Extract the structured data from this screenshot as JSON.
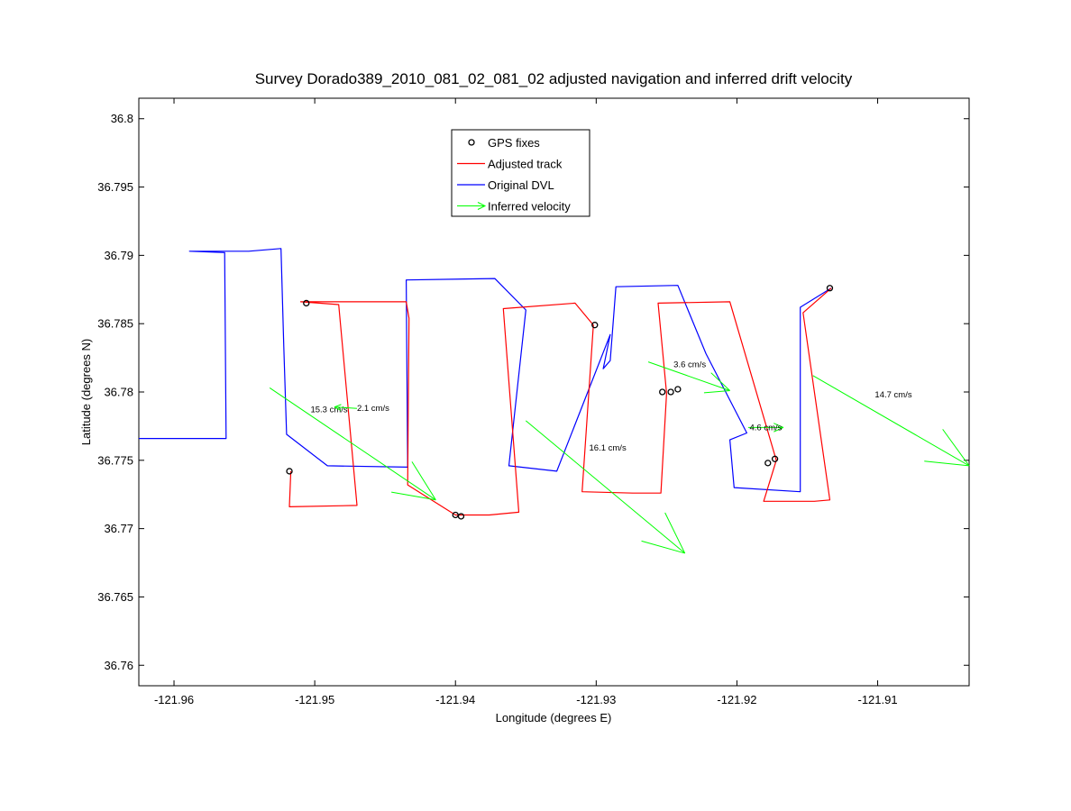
{
  "chart_data": {
    "type": "line",
    "title": "Survey Dorado389_2010_081_02_081_02 adjusted navigation and inferred drift velocity",
    "xlabel": "Longitude (degrees E)",
    "ylabel": "Latitude (degrees N)",
    "xlim": [
      -121.9625,
      -121.9035
    ],
    "ylim": [
      36.7585,
      36.8015
    ],
    "xticks": [
      -121.96,
      -121.95,
      -121.94,
      -121.93,
      -121.92,
      -121.91
    ],
    "xtick_labels": [
      "-121.96",
      "-121.95",
      "-121.94",
      "-121.93",
      "-121.92",
      "-121.91"
    ],
    "yticks": [
      36.76,
      36.765,
      36.77,
      36.775,
      36.78,
      36.785,
      36.79,
      36.795,
      36.8
    ],
    "ytick_labels": [
      "36.76",
      "36.765",
      "36.77",
      "36.775",
      "36.78",
      "36.785",
      "36.79",
      "36.795",
      "36.8"
    ],
    "grid": false,
    "legend_position": "top-center",
    "colors": {
      "gps": "#000000",
      "adjusted": "#ff0000",
      "original": "#0000ff",
      "velocity": "#00ff00"
    },
    "legend": [
      {
        "label": "GPS fixes",
        "key": "gps",
        "style": "marker"
      },
      {
        "label": "Adjusted track",
        "key": "adjusted",
        "style": "line"
      },
      {
        "label": "Original DVL",
        "key": "original",
        "style": "line"
      },
      {
        "label": "Inferred velocity",
        "key": "velocity",
        "style": "arrow"
      }
    ],
    "series": [
      {
        "name": "Original DVL",
        "key": "original",
        "points": [
          [
            -121.9625,
            36.7766
          ],
          [
            -121.9566,
            36.7766
          ],
          [
            -121.9563,
            36.7766
          ],
          [
            -121.9564,
            36.7902
          ],
          [
            -121.9589,
            36.7903
          ],
          [
            -121.9547,
            36.7903
          ],
          [
            -121.9524,
            36.7905
          ],
          [
            -121.9522,
            36.7833
          ],
          [
            -121.952,
            36.7769
          ],
          [
            -121.9491,
            36.7746
          ],
          [
            -121.9434,
            36.7745
          ],
          [
            -121.9435,
            36.7882
          ],
          [
            -121.9372,
            36.7883
          ],
          [
            -121.935,
            36.786
          ],
          [
            -121.9362,
            36.7746
          ],
          [
            -121.9328,
            36.7742
          ],
          [
            -121.929,
            36.7842
          ],
          [
            -121.9295,
            36.7817
          ],
          [
            -121.929,
            36.7823
          ],
          [
            -121.9286,
            36.7877
          ],
          [
            -121.9242,
            36.7878
          ],
          [
            -121.9222,
            36.7828
          ],
          [
            -121.9193,
            36.777
          ],
          [
            -121.9205,
            36.7765
          ],
          [
            -121.9202,
            36.773
          ],
          [
            -121.9155,
            36.7727
          ],
          [
            -121.9155,
            36.7862
          ],
          [
            -121.9133,
            36.7876
          ]
        ]
      },
      {
        "name": "Adjusted track",
        "key": "adjusted",
        "points": [
          [
            -121.9517,
            36.7742
          ],
          [
            -121.9518,
            36.7716
          ],
          [
            -121.947,
            36.7717
          ],
          [
            -121.9483,
            36.7864
          ],
          [
            -121.951,
            36.7866
          ],
          [
            -121.9486,
            36.7866
          ],
          [
            -121.9435,
            36.7866
          ],
          [
            -121.9433,
            36.7854
          ],
          [
            -121.9434,
            36.7732
          ],
          [
            -121.94,
            36.771
          ],
          [
            -121.9376,
            36.771
          ],
          [
            -121.9355,
            36.7712
          ],
          [
            -121.9366,
            36.7861
          ],
          [
            -121.9315,
            36.7865
          ],
          [
            -121.9302,
            36.7849
          ],
          [
            -121.931,
            36.7727
          ],
          [
            -121.9274,
            36.7726
          ],
          [
            -121.9254,
            36.7726
          ],
          [
            -121.925,
            36.7799
          ],
          [
            -121.9256,
            36.7865
          ],
          [
            -121.9205,
            36.7866
          ],
          [
            -121.9172,
            36.775
          ],
          [
            -121.9181,
            36.772
          ],
          [
            -121.9145,
            36.772
          ],
          [
            -121.9134,
            36.7721
          ],
          [
            -121.9153,
            36.7858
          ],
          [
            -121.9133,
            36.7876
          ]
        ]
      }
    ],
    "gps_fixes": [
      [
        -121.9518,
        36.7742
      ],
      [
        -121.9506,
        36.7865
      ],
      [
        -121.94,
        36.771
      ],
      [
        -121.9396,
        36.7709
      ],
      [
        -121.9301,
        36.7849
      ],
      [
        -121.9253,
        36.78
      ],
      [
        -121.9247,
        36.78
      ],
      [
        -121.9242,
        36.7802
      ],
      [
        -121.9178,
        36.7748
      ],
      [
        -121.9173,
        36.7751
      ],
      [
        -121.9134,
        36.7876
      ]
    ],
    "velocity_vectors": [
      {
        "label": "15.3 cm/s",
        "from": [
          -121.9532,
          36.7803
        ],
        "to": [
          -121.9414,
          36.7721
        ],
        "label_at": [
          -121.9503,
          36.7785
        ]
      },
      {
        "label": "2.1 cm/s",
        "from": [
          -121.947,
          36.7788
        ],
        "to": [
          -121.9486,
          36.7789
        ],
        "label_at": [
          -121.947,
          36.7786
        ]
      },
      {
        "label": "16.1 cm/s",
        "from": [
          -121.935,
          36.7779
        ],
        "to": [
          -121.9237,
          36.7682
        ],
        "label_at": [
          -121.9305,
          36.7757
        ]
      },
      {
        "label": "3.6 cm/s",
        "from": [
          -121.9263,
          36.7822
        ],
        "to": [
          -121.9205,
          36.7801
        ],
        "label_at": [
          -121.9245,
          36.7818
        ]
      },
      {
        "label": "4.6 cm/s",
        "from": [
          -121.9192,
          36.7774
        ],
        "to": [
          -121.9167,
          36.7774
        ],
        "label_at": [
          -121.9191,
          36.7772
        ]
      },
      {
        "label": "14.7 cm/s",
        "from": [
          -121.9146,
          36.7812
        ],
        "to": [
          -121.9035,
          36.7746
        ],
        "label_at": [
          -121.9102,
          36.7796
        ]
      }
    ]
  }
}
